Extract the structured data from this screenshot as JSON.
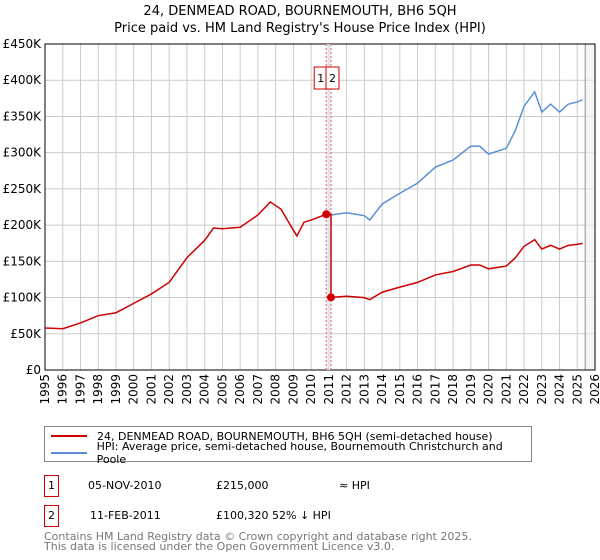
{
  "title": "24, DENMEAD ROAD, BOURNEMOUTH, BH6 5QH",
  "subtitle": "Price paid vs. HM Land Registry's House Price Index (HPI)",
  "chart_data": {
    "type": "line",
    "xlim": [
      1995,
      2026
    ],
    "ylim": [
      0,
      450000
    ],
    "yticks": [
      0,
      50000,
      100000,
      150000,
      200000,
      250000,
      300000,
      350000,
      400000,
      450000
    ],
    "ytick_labels": [
      "£0",
      "£50K",
      "£100K",
      "£150K",
      "£200K",
      "£250K",
      "£300K",
      "£350K",
      "£400K",
      "£450K"
    ],
    "xticks": [
      1995,
      1996,
      1997,
      1998,
      1999,
      2000,
      2001,
      2002,
      2003,
      2004,
      2005,
      2006,
      2007,
      2008,
      2009,
      2010,
      2011,
      2012,
      2013,
      2014,
      2015,
      2016,
      2017,
      2018,
      2019,
      2020,
      2021,
      2022,
      2023,
      2024,
      2025,
      2026
    ],
    "grid": true,
    "colors": {
      "property": "#cc0000",
      "hpi": "#5b8ed6"
    },
    "hpi": {
      "x": [
        1995,
        1996,
        1997,
        1998,
        1999,
        2000,
        2001,
        2002,
        2003,
        2004,
        2004.5,
        2005,
        2006,
        2007,
        2007.7,
        2008.3,
        2009,
        2009.2,
        2009.6,
        2010,
        2010.85,
        2011,
        2011.12,
        2012,
        2013,
        2013.3,
        2014,
        2015,
        2016,
        2017,
        2018,
        2019,
        2019.5,
        2020,
        2021,
        2021.5,
        2022,
        2022.6,
        2023,
        2023.5,
        2024,
        2024.5,
        2025,
        2025.3
      ],
      "y": [
        58000,
        57000,
        65000,
        75000,
        79000,
        92000,
        105000,
        121000,
        155000,
        179000,
        196000,
        195000,
        197000,
        214000,
        232000,
        222000,
        193000,
        185000,
        204000,
        207000,
        215000,
        214000,
        214000,
        217000,
        213000,
        207000,
        229000,
        244000,
        258000,
        280000,
        290000,
        309000,
        309000,
        298000,
        306000,
        330000,
        364000,
        384000,
        356000,
        367000,
        356000,
        367000,
        370000,
        373000
      ]
    },
    "sales": [
      {
        "label": "1",
        "date": "05-NOV-2010",
        "x": 2010.85,
        "price": 215000,
        "price_label": "£215,000",
        "hpi_note": "≈ HPI"
      },
      {
        "label": "2",
        "date": "11-FEB-2011",
        "x": 2011.12,
        "price": 100320,
        "price_label": "£100,320",
        "hpi_note": "52% ↓ HPI"
      }
    ],
    "forecast_start": 2025.45
  },
  "legend": {
    "property": "24, DENMEAD ROAD, BOURNEMOUTH, BH6 5QH (semi-detached house)",
    "hpi": "HPI: Average price, semi-detached house, Bournemouth Christchurch and Poole"
  },
  "footer": [
    "Contains HM Land Registry data © Crown copyright and database right 2025.",
    "This data is licensed under the Open Government Licence v3.0."
  ]
}
